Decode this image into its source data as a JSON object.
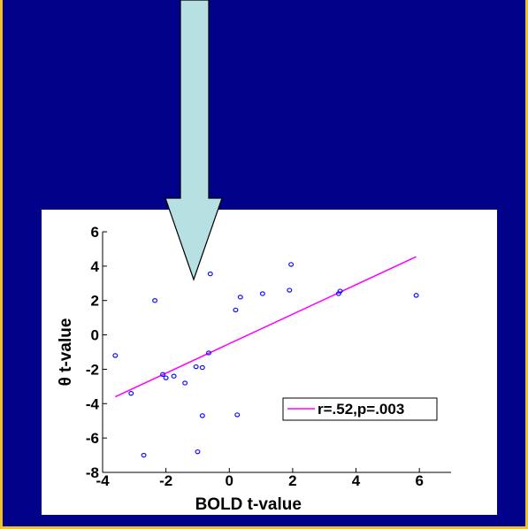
{
  "colors": {
    "border": "#f2c12e",
    "background": "#01018a",
    "panel": "#ffffff",
    "arrow_fill": "#b7e0e2",
    "points": "#1010ff",
    "fit_line": "#ff00ff"
  },
  "chart_data": {
    "type": "scatter",
    "xlabel": "BOLD t-value",
    "ylabel": "θ t-value",
    "xlim": [
      -4,
      7
    ],
    "ylim": [
      -8,
      6
    ],
    "xticks": [
      -4,
      -2,
      0,
      2,
      4,
      6
    ],
    "yticks": [
      -8,
      -6,
      -4,
      -2,
      0,
      2,
      4,
      6
    ],
    "grid": false,
    "legend_position": "lower-right",
    "series": [
      {
        "points": [
          [
            -3.6,
            -1.2
          ],
          [
            -3.1,
            -3.4
          ],
          [
            -2.7,
            -7.0
          ],
          [
            -2.35,
            2.0
          ],
          [
            -2.1,
            -2.3
          ],
          [
            -2.0,
            -2.5
          ],
          [
            -1.75,
            -2.4
          ],
          [
            -1.4,
            -2.8
          ],
          [
            -1.05,
            -1.85
          ],
          [
            -0.85,
            -1.9
          ],
          [
            -1.0,
            -6.8
          ],
          [
            -0.85,
            -4.7
          ],
          [
            -0.65,
            -1.05
          ],
          [
            -0.6,
            3.55
          ],
          [
            0.2,
            1.45
          ],
          [
            0.25,
            -4.65
          ],
          [
            0.35,
            2.2
          ],
          [
            1.05,
            2.4
          ],
          [
            1.9,
            2.6
          ],
          [
            1.95,
            4.1
          ],
          [
            3.45,
            2.4
          ],
          [
            3.5,
            2.55
          ],
          [
            5.9,
            2.3
          ]
        ]
      },
      {
        "name": "r=.52,p=.003",
        "type": "line",
        "points": [
          [
            -3.6,
            -3.6
          ],
          [
            5.9,
            4.55
          ]
        ]
      }
    ]
  }
}
